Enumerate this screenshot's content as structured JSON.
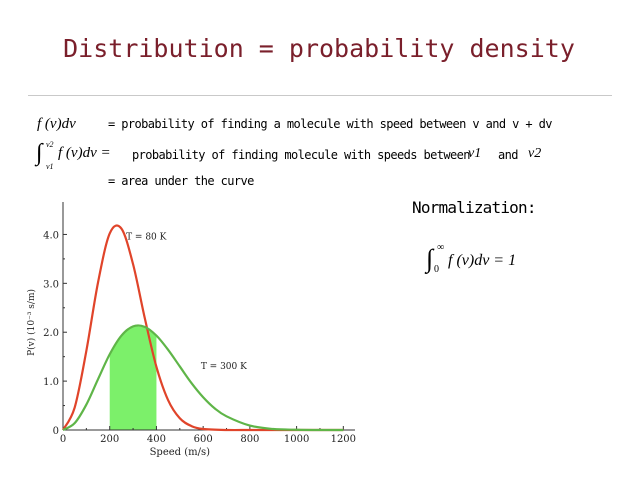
{
  "slide": {
    "title": "Distribution = probability density",
    "line1": {
      "expr": "f (v)dv",
      "text": "= probability of finding a molecule with speed between v and v + dv"
    },
    "line2": {
      "int_upper": "v2",
      "int_lower": "v1",
      "expr": "f (v)dv =",
      "text": "probability of finding molecule with speeds between",
      "v1": "v1",
      "and": "and",
      "v2": "v2"
    },
    "line3": "= area under the curve",
    "normalization": {
      "label": "Normalization:",
      "int_upper": "∞",
      "int_lower": "0",
      "expr": "f (v)dv = 1"
    }
  },
  "colors": {
    "title": "#7a1f2b",
    "low_temp": "#e0442a",
    "high_temp": "#5fb548",
    "shade": "#7cf06a"
  },
  "chart_data": {
    "type": "line",
    "xlabel": "Speed (m/s)",
    "ylabel": "P(v) (10⁻³ s/m)",
    "xlim": [
      0,
      1250
    ],
    "ylim": [
      0,
      4.5
    ],
    "xticks": [
      "0",
      "200",
      "400",
      "600",
      "800",
      "1000",
      "1200"
    ],
    "yticks": [
      "0",
      "1.0",
      "2.0",
      "3.0",
      "4.0"
    ],
    "series": [
      {
        "name": "T = 80 K",
        "color": "#e0442a",
        "x": [
          0,
          50,
          100,
          150,
          200,
          250,
          300,
          350,
          400,
          450,
          500,
          550,
          600,
          700,
          800,
          900,
          1000,
          1100,
          1200
        ],
        "y": [
          0,
          0.46,
          1.62,
          3.02,
          4.02,
          4.12,
          3.39,
          2.29,
          1.29,
          0.61,
          0.24,
          0.08,
          0.02,
          0,
          0,
          0,
          0,
          0,
          0
        ]
      },
      {
        "name": "T = 300 K",
        "color": "#5fb548",
        "x": [
          0,
          50,
          100,
          150,
          200,
          250,
          300,
          350,
          400,
          450,
          500,
          550,
          600,
          650,
          700,
          800,
          900,
          1000,
          1100,
          1200
        ],
        "y": [
          0,
          0.14,
          0.52,
          1.04,
          1.55,
          1.93,
          2.12,
          2.11,
          1.93,
          1.64,
          1.3,
          0.96,
          0.67,
          0.44,
          0.28,
          0.09,
          0.02,
          0.005,
          0,
          0
        ]
      }
    ],
    "shaded_region": {
      "series": "T = 300 K",
      "x_from": 200,
      "x_to": 400
    },
    "annotations": [
      {
        "text": "T = 80 K",
        "x": 270,
        "y": 3.9
      },
      {
        "text": "T = 300 K",
        "x": 590,
        "y": 1.25
      }
    ]
  }
}
